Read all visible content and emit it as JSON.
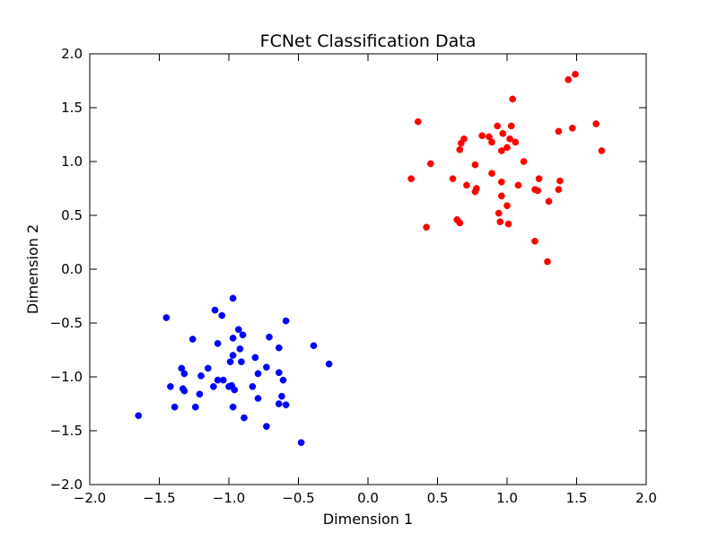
{
  "chart_data": {
    "type": "scatter",
    "title": "FCNet Classification Data",
    "xlabel": "Dimension 1",
    "ylabel": "Dimension 2",
    "xlim": [
      -2.0,
      2.0
    ],
    "ylim": [
      -2.0,
      2.0
    ],
    "grid": false,
    "x_ticks": [
      -2.0,
      -1.5,
      -1.0,
      -0.5,
      0.0,
      0.5,
      1.0,
      1.5,
      2.0
    ],
    "y_ticks": [
      -2.0,
      -1.5,
      -1.0,
      -0.5,
      0.0,
      0.5,
      1.0,
      1.5,
      2.0
    ],
    "x_tick_labels": [
      "−2.0",
      "−1.5",
      "−1.0",
      "−0.5",
      "0.0",
      "0.5",
      "1.0",
      "1.5",
      "2.0"
    ],
    "y_tick_labels": [
      "−2.0",
      "−1.5",
      "−1.0",
      "−0.5",
      "0.0",
      "0.5",
      "1.0",
      "1.5",
      "2.0"
    ],
    "series": [
      {
        "color": "#ff0000",
        "points": [
          [
            0.36,
            1.37
          ],
          [
            1.49,
            1.81
          ],
          [
            1.44,
            1.76
          ],
          [
            1.04,
            1.58
          ],
          [
            1.64,
            1.35
          ],
          [
            1.47,
            1.31
          ],
          [
            0.93,
            1.33
          ],
          [
            1.03,
            1.33
          ],
          [
            0.82,
            1.24
          ],
          [
            0.87,
            1.23
          ],
          [
            0.97,
            1.26
          ],
          [
            1.02,
            1.21
          ],
          [
            0.69,
            1.21
          ],
          [
            0.67,
            1.17
          ],
          [
            0.89,
            1.18
          ],
          [
            1.06,
            1.18
          ],
          [
            1.0,
            1.13
          ],
          [
            0.96,
            1.1
          ],
          [
            0.66,
            1.11
          ],
          [
            1.68,
            1.1
          ],
          [
            1.37,
            1.28
          ],
          [
            1.12,
            1.0
          ],
          [
            0.77,
            0.97
          ],
          [
            0.45,
            0.98
          ],
          [
            0.89,
            0.89
          ],
          [
            0.31,
            0.84
          ],
          [
            0.61,
            0.84
          ],
          [
            0.96,
            0.81
          ],
          [
            1.23,
            0.84
          ],
          [
            1.38,
            0.82
          ],
          [
            0.71,
            0.78
          ],
          [
            1.08,
            0.78
          ],
          [
            0.78,
            0.75
          ],
          [
            0.77,
            0.72
          ],
          [
            1.2,
            0.74
          ],
          [
            1.22,
            0.73
          ],
          [
            1.37,
            0.74
          ],
          [
            0.96,
            0.68
          ],
          [
            1.3,
            0.63
          ],
          [
            1.0,
            0.59
          ],
          [
            0.94,
            0.52
          ],
          [
            0.64,
            0.46
          ],
          [
            0.66,
            0.43
          ],
          [
            0.95,
            0.44
          ],
          [
            1.01,
            0.42
          ],
          [
            0.42,
            0.39
          ],
          [
            1.2,
            0.26
          ],
          [
            1.29,
            0.07
          ]
        ]
      },
      {
        "color": "#0000ff",
        "points": [
          [
            -0.97,
            -0.27
          ],
          [
            -1.1,
            -0.38
          ],
          [
            -1.05,
            -0.43
          ],
          [
            -1.45,
            -0.45
          ],
          [
            -0.59,
            -0.48
          ],
          [
            -0.93,
            -0.56
          ],
          [
            -0.9,
            -0.61
          ],
          [
            -0.97,
            -0.64
          ],
          [
            -1.26,
            -0.65
          ],
          [
            -0.71,
            -0.63
          ],
          [
            -1.08,
            -0.69
          ],
          [
            -0.39,
            -0.71
          ],
          [
            -0.64,
            -0.73
          ],
          [
            -0.92,
            -0.74
          ],
          [
            -0.97,
            -0.8
          ],
          [
            -0.81,
            -0.82
          ],
          [
            -0.99,
            -0.86
          ],
          [
            -0.91,
            -0.86
          ],
          [
            -0.28,
            -0.88
          ],
          [
            -0.73,
            -0.91
          ],
          [
            -1.15,
            -0.92
          ],
          [
            -1.34,
            -0.92
          ],
          [
            -1.32,
            -0.97
          ],
          [
            -0.64,
            -0.96
          ],
          [
            -0.79,
            -0.97
          ],
          [
            -1.2,
            -0.99
          ],
          [
            -1.08,
            -1.03
          ],
          [
            -1.04,
            -1.03
          ],
          [
            -0.61,
            -1.03
          ],
          [
            -1.42,
            -1.09
          ],
          [
            -1.11,
            -1.09
          ],
          [
            -1.0,
            -1.09
          ],
          [
            -0.98,
            -1.08
          ],
          [
            -0.83,
            -1.09
          ],
          [
            -1.33,
            -1.11
          ],
          [
            -1.32,
            -1.13
          ],
          [
            -0.96,
            -1.12
          ],
          [
            -1.21,
            -1.16
          ],
          [
            -0.62,
            -1.18
          ],
          [
            -0.79,
            -1.2
          ],
          [
            -0.64,
            -1.25
          ],
          [
            -0.59,
            -1.26
          ],
          [
            -1.39,
            -1.28
          ],
          [
            -1.24,
            -1.28
          ],
          [
            -0.97,
            -1.28
          ],
          [
            -0.89,
            -1.38
          ],
          [
            -1.65,
            -1.36
          ],
          [
            -0.73,
            -1.46
          ],
          [
            -0.48,
            -1.61
          ]
        ]
      }
    ]
  }
}
